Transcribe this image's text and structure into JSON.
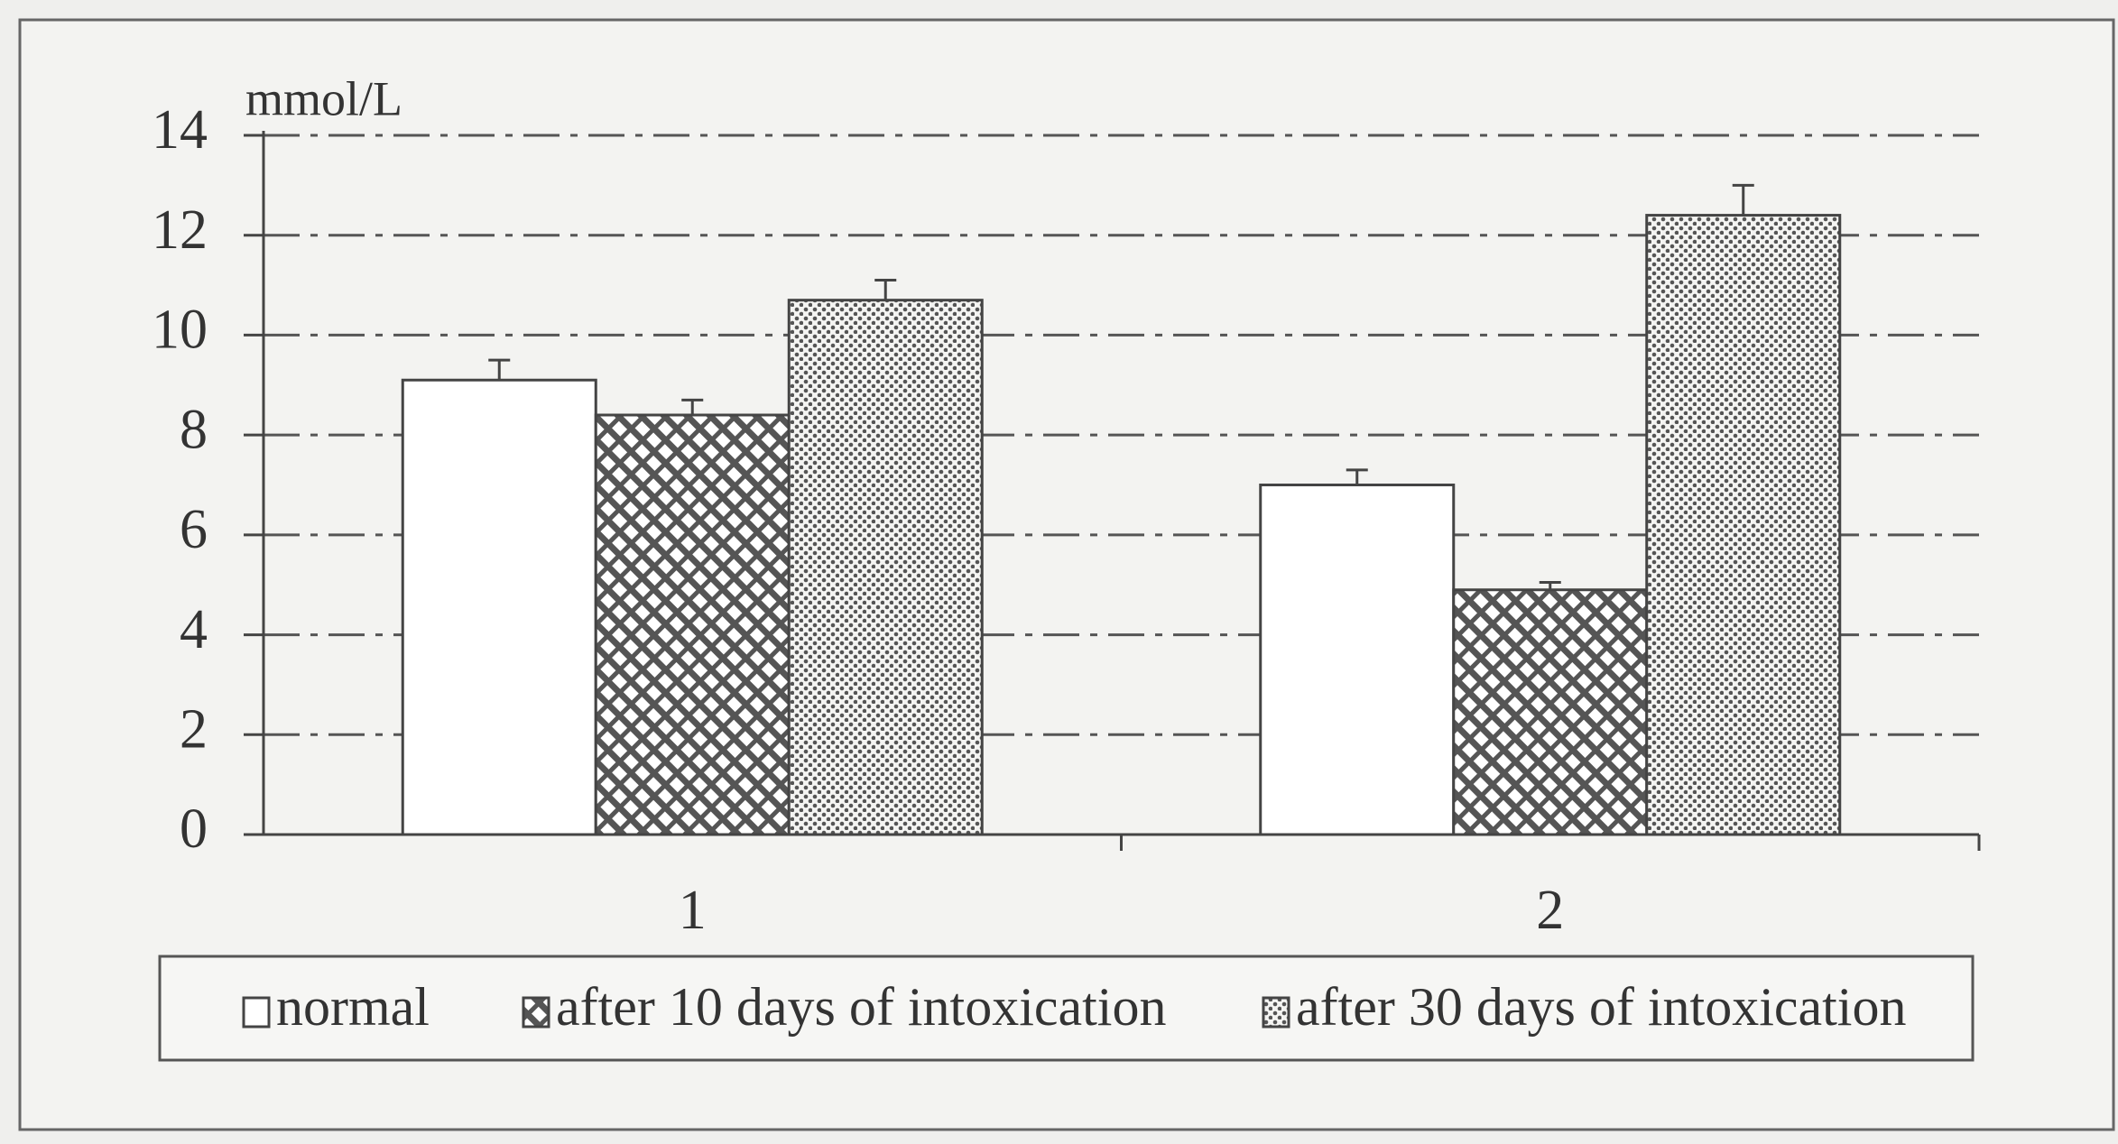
{
  "chart_data": {
    "type": "bar",
    "y_label": "mmol/L",
    "categories": [
      "1",
      "2"
    ],
    "series": [
      {
        "name": "normal",
        "color": "#ffffff",
        "pattern": "none",
        "values": [
          9.1,
          7.0
        ],
        "errors": [
          0.4,
          0.3
        ]
      },
      {
        "name": "after 10 days of intoxication",
        "color": "#555555",
        "pattern": "hatch",
        "values": [
          8.4,
          4.9
        ],
        "errors": [
          0.3,
          0.15
        ]
      },
      {
        "name": "after 30 days of intoxication",
        "color": "#555555",
        "pattern": "dots",
        "values": [
          10.7,
          12.4
        ],
        "errors": [
          0.4,
          0.6
        ]
      }
    ],
    "ylim": [
      0,
      14
    ],
    "yticks": [
      0,
      2,
      4,
      6,
      8,
      10,
      12,
      14
    ],
    "grid": true,
    "legend": "bottom"
  }
}
